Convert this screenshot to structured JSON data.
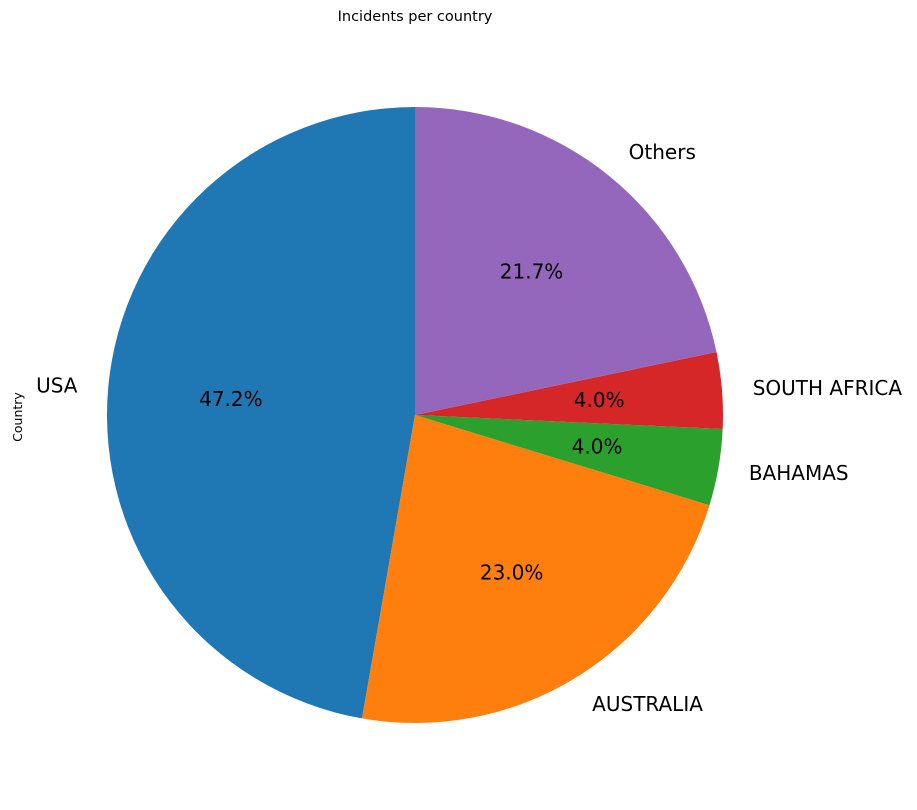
{
  "chart_data": {
    "type": "pie",
    "title": "Incidents per country",
    "ylabel": "Country",
    "xlabel": "",
    "start_angle_deg": 90,
    "direction": "counterclockwise",
    "slices": [
      {
        "label": "USA",
        "value": 47.2,
        "pct_label": "47.2%",
        "color": "#1f77b4"
      },
      {
        "label": "AUSTRALIA",
        "value": 23.0,
        "pct_label": "23.0%",
        "color": "#ff7f0e"
      },
      {
        "label": "BAHAMAS",
        "value": 4.0,
        "pct_label": "4.0%",
        "color": "#2ca02c"
      },
      {
        "label": "SOUTH AFRICA",
        "value": 4.0,
        "pct_label": "4.0%",
        "color": "#d62728"
      },
      {
        "label": "Others",
        "value": 21.7,
        "pct_label": "21.7%",
        "color": "#9467bd"
      }
    ]
  }
}
